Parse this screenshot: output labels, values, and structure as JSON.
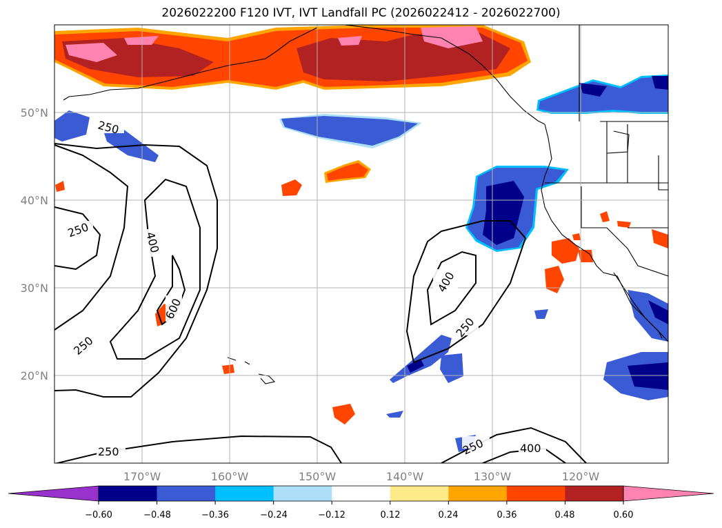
{
  "title": "2026022200 F120 IVT, IVT Landfall PC (2026022412 - 2026022700)",
  "lat_labels": [
    "50°N",
    "40°N",
    "30°N",
    "20°N"
  ],
  "lon_labels": [
    "170°W",
    "160°W",
    "150°W",
    "140°W",
    "130°W",
    "120°W"
  ],
  "contour_labels": [
    "250",
    "250",
    "400",
    "600",
    "250",
    "400",
    "250",
    "250",
    "250",
    "400"
  ],
  "colorbar": {
    "tick_labels": [
      "−0.60",
      "−0.48",
      "−0.36",
      "−0.24",
      "−0.12",
      "0.12",
      "0.24",
      "0.36",
      "0.48",
      "0.60"
    ],
    "colors": [
      "#9932CC",
      "#00008B",
      "#3A5BD4",
      "#00BFFF",
      "#ADE0F8",
      "#FFFFFF",
      "#FFEA8A",
      "#FFA500",
      "#FF4500",
      "#B22222",
      "#FF83B0"
    ]
  },
  "map": {
    "lon_range": [
      -180,
      -110
    ],
    "lat_range": [
      10,
      60
    ],
    "contour_levels": [
      250,
      400,
      600
    ]
  }
}
